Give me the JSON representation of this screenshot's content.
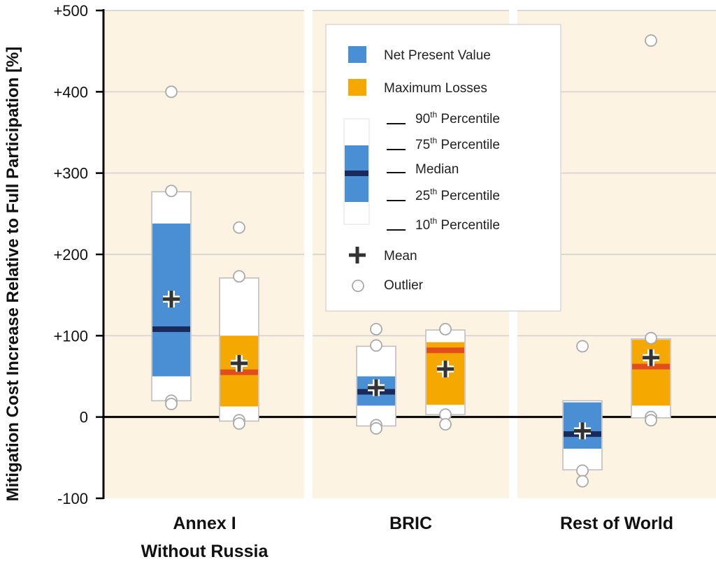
{
  "chart_data": {
    "type": "box",
    "ylabel": "Mitigation Cost Increase Relative to Full Participation [%]",
    "ylim": [
      -100,
      500
    ],
    "yticks": [
      -100,
      0,
      100,
      200,
      300,
      400,
      500
    ],
    "ytick_labels": [
      "-100",
      "0",
      "+100",
      "+200",
      "+300",
      "+400",
      "+500"
    ],
    "grid": true,
    "legend_position": "top-center",
    "colors": {
      "npv": "#4a8fd4",
      "npv_median": "#1a2a5a",
      "ml": "#f5a800",
      "ml_median": "#e04e1e",
      "panel_bg": "#fdf3e3"
    },
    "categories": [
      {
        "label_lines": [
          "Annex I",
          "Without Russia"
        ]
      },
      {
        "label_lines": [
          "BRIC"
        ]
      },
      {
        "label_lines": [
          "Rest of World"
        ]
      }
    ],
    "series": [
      {
        "name": "Net Present Value",
        "boxes": [
          {
            "p10": 20,
            "p25": 50,
            "median": 108,
            "p75": 238,
            "p90": 277,
            "mean": 145,
            "outliers": [
              400,
              278,
              20,
              16
            ]
          },
          {
            "p10": -11,
            "p25": 14,
            "median": 31,
            "p75": 50,
            "p90": 87,
            "mean": 36,
            "outliers": [
              108,
              88,
              -10,
              -14
            ]
          },
          {
            "p10": -65,
            "p25": -39,
            "median": -21,
            "p75": 18,
            "p90": 20,
            "mean": -17,
            "outliers": [
              87,
              -66,
              -79
            ]
          }
        ]
      },
      {
        "name": "Maximum Losses",
        "boxes": [
          {
            "p10": -5,
            "p25": 13,
            "median": 55,
            "p75": 100,
            "p90": 171,
            "mean": 66,
            "outliers": [
              233,
              173,
              -4,
              -8
            ]
          },
          {
            "p10": 3,
            "p25": 15,
            "median": 82,
            "p75": 92,
            "p90": 107,
            "mean": 59,
            "outliers": [
              108,
              3,
              -9
            ]
          },
          {
            "p10": -1,
            "p25": 14,
            "median": 62,
            "p75": 95,
            "p90": 96,
            "mean": 73,
            "outliers": [
              463,
              97,
              0,
              -4
            ]
          }
        ]
      }
    ],
    "legend": {
      "series": [
        "Net Present Value",
        "Maximum Losses"
      ],
      "percentiles": [
        {
          "num": "90",
          "sup": "th",
          "text": "Percentile"
        },
        {
          "num": "75",
          "sup": "th",
          "text": "Percentile"
        },
        {
          "num": "",
          "sup": "",
          "text": "Median"
        },
        {
          "num": "25",
          "sup": "th",
          "text": "Percentile"
        },
        {
          "num": "10",
          "sup": "th",
          "text": "Percentile"
        }
      ],
      "mean_label": "Mean",
      "outlier_label": "Outlier"
    }
  }
}
